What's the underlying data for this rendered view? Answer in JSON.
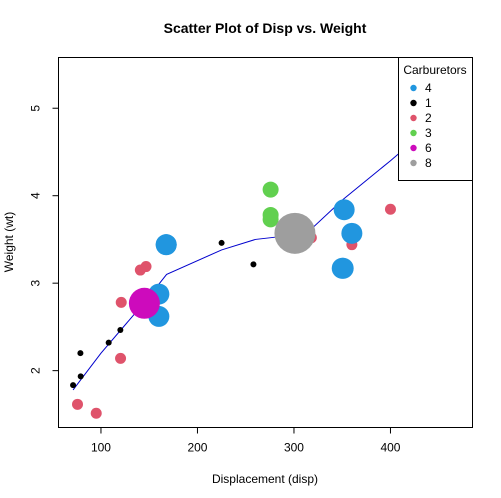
{
  "chart_data": {
    "type": "scatter",
    "title": "Scatter Plot of Disp vs. Weight",
    "xlabel": "Displacement (disp)",
    "ylabel": "Weight (wt)",
    "xlim": [
      56,
      485
    ],
    "ylim": [
      1.35,
      5.58
    ],
    "xticks": [
      100,
      200,
      300,
      400
    ],
    "yticks": [
      2,
      3,
      4,
      5
    ],
    "grid": false,
    "size_variable": "carb",
    "legend": {
      "title": "Carburetors",
      "placement": "top-right",
      "entries": [
        {
          "label": "4",
          "color": "#2196DF"
        },
        {
          "label": "1",
          "color": "#000000"
        },
        {
          "label": "2",
          "color": "#DF536B"
        },
        {
          "label": "3",
          "color": "#61D04F"
        },
        {
          "label": "6",
          "color": "#CD0BBC"
        },
        {
          "label": "8",
          "color": "#9E9E9E"
        }
      ]
    },
    "series": [
      {
        "name": "1",
        "color": "#000000",
        "carb": 1,
        "points": [
          [
            108,
            2.32
          ],
          [
            258,
            3.215
          ],
          [
            225,
            3.46
          ],
          [
            71.1,
            1.835
          ],
          [
            120.1,
            2.465
          ],
          [
            79,
            1.935
          ],
          [
            78.7,
            2.2
          ]
        ]
      },
      {
        "name": "2",
        "color": "#DF536B",
        "carb": 2,
        "points": [
          [
            360,
            3.44
          ],
          [
            146.7,
            3.19
          ],
          [
            140.8,
            3.15
          ],
          [
            75.7,
            1.615
          ],
          [
            120.3,
            2.14
          ],
          [
            318,
            3.52
          ],
          [
            304,
            3.435
          ],
          [
            400,
            3.845
          ],
          [
            95.1,
            1.513
          ],
          [
            121,
            2.78
          ]
        ]
      },
      {
        "name": "3",
        "color": "#61D04F",
        "carb": 3,
        "points": [
          [
            275.8,
            4.07
          ],
          [
            275.8,
            3.73
          ],
          [
            275.8,
            3.78
          ]
        ]
      },
      {
        "name": "4",
        "color": "#2196DF",
        "carb": 4,
        "points": [
          [
            160,
            2.62
          ],
          [
            160,
            2.875
          ],
          [
            360,
            3.57
          ],
          [
            167.6,
            3.44
          ],
          [
            167.6,
            3.44
          ],
          [
            350,
            3.17
          ],
          [
            351,
            3.17
          ],
          [
            352,
            3.84
          ]
        ]
      },
      {
        "name": "6",
        "color": "#CD0BBC",
        "carb": 6,
        "points": [
          [
            145,
            2.77
          ]
        ]
      },
      {
        "name": "8",
        "color": "#9E9E9E",
        "carb": 8,
        "points": [
          [
            301,
            3.57
          ]
        ]
      }
    ],
    "fit_line": {
      "color": "#0000CD",
      "x": [
        71.1,
        100,
        145,
        168,
        225,
        260,
        300,
        318,
        350,
        400,
        472
      ],
      "y": [
        1.78,
        2.2,
        2.78,
        3.1,
        3.38,
        3.5,
        3.55,
        3.62,
        3.95,
        4.4,
        5.08
      ]
    }
  }
}
